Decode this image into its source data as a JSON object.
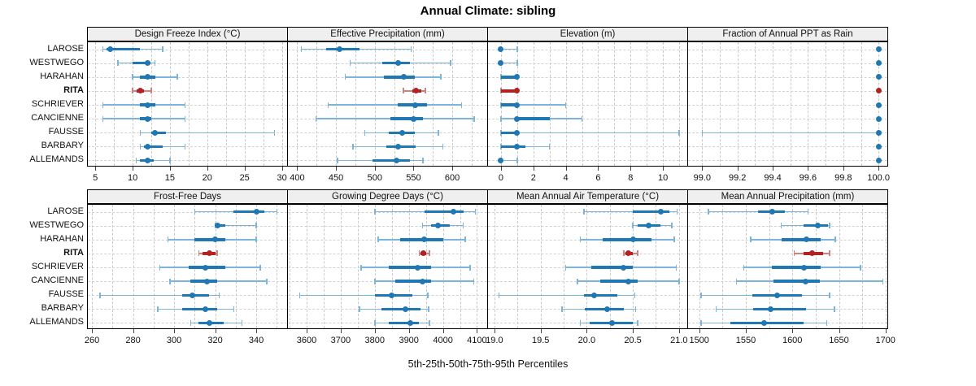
{
  "title": "Annual Climate: sibling",
  "caption": "5th-25th-50th-75th-95th Percentiles",
  "colors": {
    "normal": "#1f77b4",
    "normal_light": "#7db5da",
    "highlight": "#b22222",
    "highlight_light": "#cf8080",
    "strip_bg": "#efefef",
    "grid": "#c9c9c9",
    "border": "#000000",
    "text": "#111111"
  },
  "stations": [
    "LAROSE",
    "WESTWEGO",
    "HARAHAN",
    "RITA",
    "SCHRIEVER",
    "CANCIENNE",
    "FAUSSE",
    "BARBARY",
    "ALLEMANDS"
  ],
  "highlight_station": "RITA",
  "chart_data": {
    "type": "dotplot-percentiles",
    "percentile_labels": [
      "5th",
      "25th",
      "50th",
      "75th",
      "95th"
    ],
    "panels": [
      {
        "title": "Design Freeze Index (°C)",
        "xmin": 4.0,
        "xmax": 30.7,
        "ticks": [
          5,
          10,
          15,
          20,
          25,
          30
        ],
        "tick_labels": [
          "5",
          "10",
          "15",
          "20",
          "25",
          "30"
        ],
        "values": {
          "LAROSE": [
            6,
            6.5,
            7,
            11,
            14
          ],
          "WESTWEGO": [
            8,
            10,
            12,
            12.4,
            13
          ],
          "HARAHAN": [
            10,
            11,
            12,
            13,
            16
          ],
          "RITA": [
            10,
            10.5,
            11,
            11.5,
            12.5
          ],
          "SCHRIEVER": [
            6,
            11,
            12,
            13,
            17
          ],
          "CANCIENNE": [
            6,
            11,
            12,
            12.5,
            17
          ],
          "FAUSSE": [
            11,
            12.5,
            13,
            14.5,
            29
          ],
          "BARBARY": [
            11,
            11.5,
            12,
            14,
            17
          ],
          "ALLEMANDS": [
            10.5,
            11,
            12,
            12.8,
            15
          ]
        }
      },
      {
        "title": "Effective Precipitation (mm)",
        "xmin": 388,
        "xmax": 645,
        "ticks": [
          400,
          450,
          500,
          550,
          600
        ],
        "tick_labels": [
          "400",
          "450",
          "500",
          "550",
          "600"
        ],
        "values": {
          "LAROSE": [
            405,
            437,
            455,
            480,
            547
          ],
          "WESTWEGO": [
            468,
            510,
            530,
            545,
            598
          ],
          "HARAHAN": [
            462,
            512,
            537,
            552,
            585
          ],
          "RITA": [
            537,
            548,
            553,
            560,
            565
          ],
          "SCHRIEVER": [
            440,
            530,
            552,
            567,
            612
          ],
          "CANCIENNE": [
            424,
            520,
            550,
            562,
            628
          ],
          "FAUSSE": [
            487,
            518,
            535,
            552,
            582
          ],
          "BARBARY": [
            472,
            515,
            530,
            553,
            588
          ],
          "ALLEMANDS": [
            452,
            497,
            528,
            545,
            562
          ]
        }
      },
      {
        "title": "Elevation (m)",
        "xmin": -0.8,
        "xmax": 11.5,
        "ticks": [
          0,
          2,
          4,
          6,
          8,
          10
        ],
        "tick_labels": [
          "0",
          "2",
          "4",
          "6",
          "8",
          "10"
        ],
        "values": {
          "LAROSE": [
            0,
            0,
            0,
            0,
            1
          ],
          "WESTWEGO": [
            0,
            0,
            0,
            0,
            1
          ],
          "HARAHAN": [
            0,
            0,
            1,
            1,
            1
          ],
          "RITA": [
            0,
            0,
            1,
            1,
            1
          ],
          "SCHRIEVER": [
            0,
            0,
            1,
            1,
            4
          ],
          "CANCIENNE": [
            0,
            1,
            1,
            3,
            5
          ],
          "FAUSSE": [
            0,
            0,
            1,
            1,
            11
          ],
          "BARBARY": [
            0,
            0,
            1,
            1.5,
            3
          ],
          "ALLEMANDS": [
            0,
            0,
            0,
            0,
            1
          ]
        }
      },
      {
        "title": "Fraction of Annual PPT as Rain",
        "xmin": 98.92,
        "xmax": 100.05,
        "ticks": [
          99.0,
          99.2,
          99.4,
          99.6,
          99.8,
          100.0
        ],
        "tick_labels": [
          "99.0",
          "99.2",
          "99.4",
          "99.6",
          "99.8",
          "100.0"
        ],
        "values": {
          "LAROSE": [
            100,
            100,
            100,
            100,
            100
          ],
          "WESTWEGO": [
            100,
            100,
            100,
            100,
            100
          ],
          "HARAHAN": [
            100,
            100,
            100,
            100,
            100
          ],
          "RITA": [
            100,
            100,
            100,
            100,
            100
          ],
          "SCHRIEVER": [
            100,
            100,
            100,
            100,
            100
          ],
          "CANCIENNE": [
            100,
            100,
            100,
            100,
            100
          ],
          "FAUSSE": [
            99.0,
            100,
            100,
            100,
            100
          ],
          "BARBARY": [
            100,
            100,
            100,
            100,
            100
          ],
          "ALLEMANDS": [
            100,
            100,
            100,
            100,
            100
          ]
        }
      },
      {
        "title": "Frost-Free Days",
        "xmin": 258,
        "xmax": 355,
        "ticks": [
          260,
          280,
          300,
          320,
          340
        ],
        "tick_labels": [
          "260",
          "280",
          "300",
          "320",
          "340"
        ],
        "values": {
          "LAROSE": [
            310,
            329,
            340,
            344,
            350
          ],
          "WESTWEGO": [
            320,
            320.5,
            321,
            325,
            340
          ],
          "HARAHAN": [
            297,
            310,
            320,
            325,
            340
          ],
          "RITA": [
            312,
            314,
            317,
            320,
            321
          ],
          "SCHRIEVER": [
            293,
            307,
            315,
            325,
            342
          ],
          "CANCIENNE": [
            298,
            308,
            316,
            321,
            345
          ],
          "FAUSSE": [
            264,
            304,
            309,
            317,
            322
          ],
          "BARBARY": [
            292,
            304,
            315,
            321,
            329
          ],
          "ALLEMANDS": [
            308,
            312,
            317,
            324,
            333
          ]
        }
      },
      {
        "title": "Growing Degree Days (°C)",
        "xmin": 3545,
        "xmax": 4130,
        "ticks": [
          3600,
          3700,
          3800,
          3900,
          4000,
          4100
        ],
        "tick_labels": [
          "3600",
          "3700",
          "3800",
          "3900",
          "4000",
          "4100"
        ],
        "values": {
          "LAROSE": [
            3800,
            3945,
            4030,
            4060,
            4095
          ],
          "WESTWEGO": [
            3940,
            3965,
            3985,
            4020,
            4060
          ],
          "HARAHAN": [
            3810,
            3875,
            3945,
            4000,
            4065
          ],
          "RITA": [
            3930,
            3935,
            3942,
            3952,
            3960
          ],
          "SCHRIEVER": [
            3760,
            3840,
            3925,
            3965,
            4080
          ],
          "CANCIENNE": [
            3800,
            3860,
            3940,
            3965,
            4090
          ],
          "FAUSSE": [
            3580,
            3800,
            3850,
            3910,
            3955
          ],
          "BARBARY": [
            3755,
            3820,
            3890,
            3935,
            3958
          ],
          "ALLEMANDS": [
            3800,
            3840,
            3905,
            3930,
            3960
          ]
        }
      },
      {
        "title": "Mean Annual Air Temperature (°C)",
        "xmin": 18.93,
        "xmax": 21.09,
        "ticks": [
          19.0,
          19.5,
          20.0,
          20.5,
          21.0
        ],
        "tick_labels": [
          "19.0",
          "19.5",
          "20.0",
          "20.5",
          "21.0"
        ],
        "values": {
          "LAROSE": [
            19.97,
            20.5,
            20.8,
            20.9,
            20.98
          ],
          "WESTWEGO": [
            20.5,
            20.55,
            20.67,
            20.8,
            20.92
          ],
          "HARAHAN": [
            19.93,
            20.17,
            20.5,
            20.7,
            20.95
          ],
          "RITA": [
            20.4,
            20.42,
            20.45,
            20.5,
            20.55
          ],
          "SCHRIEVER": [
            19.77,
            20.05,
            20.4,
            20.5,
            20.97
          ],
          "CANCIENNE": [
            19.9,
            20.15,
            20.45,
            20.55,
            21.0
          ],
          "FAUSSE": [
            19.05,
            19.97,
            20.08,
            20.33,
            20.52
          ],
          "BARBARY": [
            19.73,
            19.98,
            20.22,
            20.4,
            20.53
          ],
          "ALLEMANDS": [
            19.93,
            20.03,
            20.27,
            20.5,
            20.55
          ]
        }
      },
      {
        "title": "Mean Annual Precipitation (mm)",
        "xmin": 1488,
        "xmax": 1702,
        "ticks": [
          1500,
          1550,
          1600,
          1650,
          1700
        ],
        "tick_labels": [
          "1500",
          "1550",
          "1600",
          "1650",
          "1700"
        ],
        "values": {
          "LAROSE": [
            1510,
            1563,
            1578,
            1592,
            1617
          ],
          "WESTWEGO": [
            1588,
            1612,
            1627,
            1638,
            1640
          ],
          "HARAHAN": [
            1555,
            1588,
            1615,
            1630,
            1646
          ],
          "RITA": [
            1602,
            1612,
            1621,
            1633,
            1640
          ],
          "SCHRIEVER": [
            1548,
            1578,
            1612,
            1630,
            1673
          ],
          "CANCIENNE": [
            1540,
            1580,
            1614,
            1630,
            1697
          ],
          "FAUSSE": [
            1502,
            1557,
            1584,
            1610,
            1640
          ],
          "BARBARY": [
            1518,
            1558,
            1577,
            1615,
            1645
          ],
          "ALLEMANDS": [
            1502,
            1533,
            1570,
            1612,
            1637
          ]
        }
      }
    ]
  }
}
